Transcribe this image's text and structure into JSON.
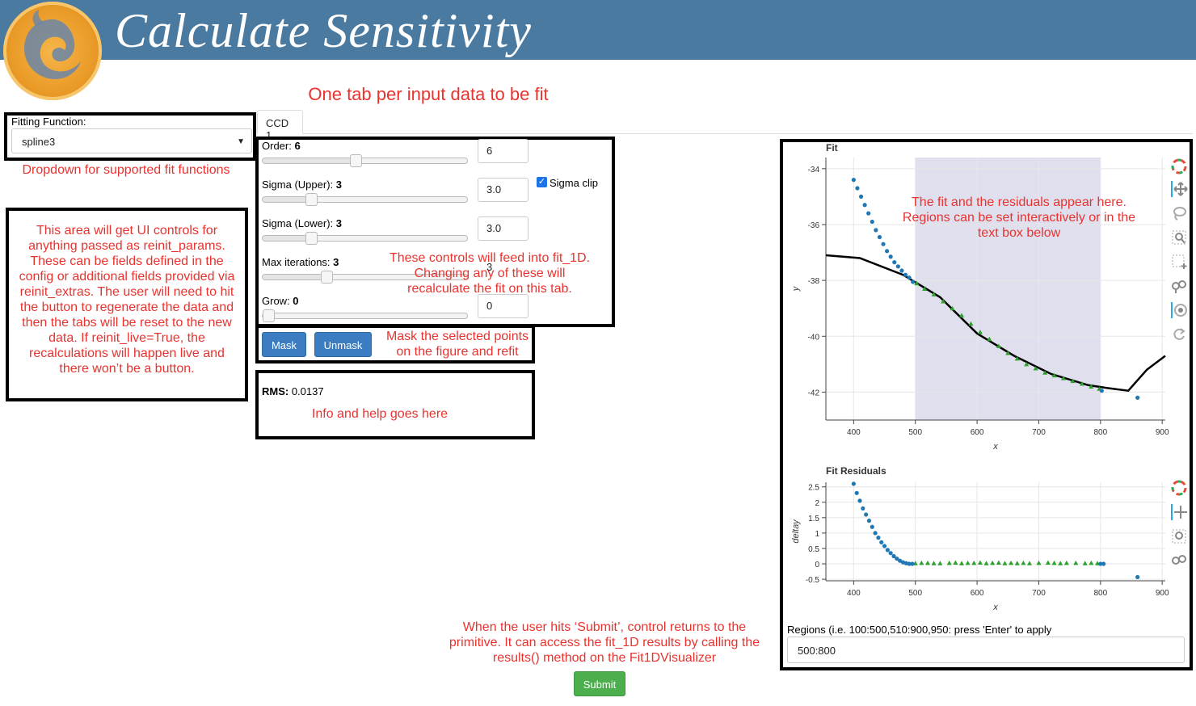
{
  "header": {
    "title": "Calculate Sensitivity"
  },
  "annotations": {
    "tab_note": "One tab per input data to be fit",
    "dropdown_note": "Dropdown for supported fit functions",
    "reinit_note": "This area will get UI controls for anything passed as reinit_params. These can be fields defined in the config or additional fields provided via reinit_extras.  The user will need to hit the button to regenerate the data and then the tabs will be reset to the new data.  If reinit_live=True, the recalculations will happen live and there won’t be a button.",
    "controls_note": "These controls will feed into fit_1D.  Changing any of these will recalculate the fit on this tab.",
    "mask_note": "Mask the selected points on the figure and refit",
    "info_note": "Info and help goes here",
    "plot_note": "The fit and the residuals appear here. Regions can be set interactively or in the text box below",
    "submit_note": "When the user hits ‘Submit’, control returns to the primitive.  It can access the fit_1D results by calling the results() method on the Fit1DVisualizer"
  },
  "fitting": {
    "label": "Fitting Function:",
    "value": "spline3"
  },
  "tab": {
    "label": "CCD 1"
  },
  "controls": {
    "order": {
      "label": "Order: ",
      "value": "6",
      "input": "6",
      "frac": 0.45
    },
    "sigma_upper": {
      "label": "Sigma (Upper): ",
      "value": "3",
      "input": "3.0",
      "frac": 0.22
    },
    "sigma_lower": {
      "label": "Sigma (Lower): ",
      "value": "3",
      "input": "3.0",
      "frac": 0.22
    },
    "max_iter": {
      "label": "Max iterations: ",
      "value": "3",
      "input": "3",
      "frac": 0.3
    },
    "grow": {
      "label": "Grow: ",
      "value": "0",
      "input": "0",
      "frac": 0.0
    },
    "sigma_clip": {
      "label": "Sigma clip",
      "checked": true
    }
  },
  "buttons": {
    "mask": "Mask",
    "unmask": "Unmask",
    "submit": "Submit"
  },
  "rms": {
    "label": "RMS:",
    "value": " 0.0137"
  },
  "regions": {
    "label": "Regions (i.e. 100:500,510:900,950: press 'Enter' to apply",
    "value": "500:800"
  },
  "chart_data": [
    {
      "type": "scatter",
      "title": "Fit",
      "xlabel": "x",
      "ylabel": "y",
      "xlim": [
        355,
        905
      ],
      "ylim": [
        -43.0,
        -33.6
      ],
      "xticks": [
        400,
        500,
        600,
        700,
        800,
        900
      ],
      "yticks": [
        -34,
        -36,
        -38,
        -40,
        -42
      ],
      "region": [
        500,
        800
      ],
      "masked_points": [
        [
          400,
          -34.4
        ],
        [
          406,
          -34.7
        ],
        [
          412,
          -35.0
        ],
        [
          418,
          -35.3
        ],
        [
          424,
          -35.6
        ],
        [
          430,
          -35.9
        ],
        [
          436,
          -36.2
        ],
        [
          442,
          -36.45
        ],
        [
          448,
          -36.7
        ],
        [
          454,
          -36.95
        ],
        [
          460,
          -37.15
        ],
        [
          466,
          -37.35
        ],
        [
          472,
          -37.5
        ],
        [
          478,
          -37.65
        ],
        [
          484,
          -37.8
        ],
        [
          490,
          -37.9
        ],
        [
          496,
          -38.05
        ],
        [
          802,
          -41.95
        ],
        [
          860,
          -42.2
        ]
      ],
      "fitted_points": [
        [
          502,
          -38.1
        ],
        [
          515,
          -38.3
        ],
        [
          530,
          -38.5
        ],
        [
          545,
          -38.75
        ],
        [
          560,
          -39.0
        ],
        [
          575,
          -39.25
        ],
        [
          590,
          -39.55
        ],
        [
          605,
          -39.85
        ],
        [
          620,
          -40.1
        ],
        [
          635,
          -40.35
        ],
        [
          650,
          -40.6
        ],
        [
          665,
          -40.8
        ],
        [
          680,
          -41.0
        ],
        [
          695,
          -41.15
        ],
        [
          710,
          -41.3
        ],
        [
          725,
          -41.4
        ],
        [
          740,
          -41.5
        ],
        [
          755,
          -41.6
        ],
        [
          770,
          -41.7
        ],
        [
          785,
          -41.8
        ],
        [
          798,
          -41.88
        ]
      ],
      "fit_line": [
        [
          355,
          -37.1
        ],
        [
          410,
          -37.2
        ],
        [
          480,
          -37.8
        ],
        [
          540,
          -38.6
        ],
        [
          600,
          -39.9
        ],
        [
          660,
          -40.7
        ],
        [
          720,
          -41.35
        ],
        [
          780,
          -41.75
        ],
        [
          810,
          -41.85
        ],
        [
          845,
          -41.95
        ],
        [
          875,
          -41.2
        ],
        [
          905,
          -40.7
        ]
      ]
    },
    {
      "type": "scatter",
      "title": "Fit Residuals",
      "xlabel": "x",
      "ylabel": "deltay",
      "xlim": [
        355,
        905
      ],
      "ylim": [
        -0.55,
        2.65
      ],
      "xticks": [
        400,
        500,
        600,
        700,
        800,
        900
      ],
      "yticks": [
        2.5,
        2,
        1.5,
        1,
        0.5,
        0,
        -0.5
      ],
      "ytick_labels": [
        "2.5",
        "2",
        "1.5",
        "1",
        "0.5",
        "0",
        "-0.5"
      ],
      "masked_points": [
        [
          400,
          2.6
        ],
        [
          405,
          2.3
        ],
        [
          410,
          2.05
        ],
        [
          415,
          1.8
        ],
        [
          420,
          1.6
        ],
        [
          425,
          1.4
        ],
        [
          430,
          1.2
        ],
        [
          435,
          1.0
        ],
        [
          440,
          0.85
        ],
        [
          445,
          0.7
        ],
        [
          450,
          0.58
        ],
        [
          455,
          0.45
        ],
        [
          460,
          0.35
        ],
        [
          465,
          0.25
        ],
        [
          470,
          0.17
        ],
        [
          475,
          0.1
        ],
        [
          480,
          0.05
        ],
        [
          485,
          0.02
        ],
        [
          490,
          0.0
        ],
        [
          495,
          0.0
        ],
        [
          800,
          0.0
        ],
        [
          805,
          0.0
        ],
        [
          860,
          -0.43
        ]
      ],
      "fitted_points": [
        [
          500,
          0.02
        ],
        [
          510,
          0.03
        ],
        [
          520,
          0.03
        ],
        [
          530,
          0.02
        ],
        [
          540,
          0.02
        ],
        [
          555,
          0.03
        ],
        [
          565,
          0.04
        ],
        [
          575,
          0.02
        ],
        [
          585,
          0.03
        ],
        [
          595,
          0.03
        ],
        [
          605,
          0.04
        ],
        [
          615,
          0.02
        ],
        [
          625,
          0.03
        ],
        [
          635,
          0.04
        ],
        [
          645,
          0.02
        ],
        [
          655,
          0.03
        ],
        [
          665,
          0.02
        ],
        [
          675,
          0.03
        ],
        [
          685,
          0.02
        ],
        [
          700,
          0.03
        ],
        [
          715,
          0.04
        ],
        [
          725,
          0.03
        ],
        [
          735,
          0.02
        ],
        [
          745,
          0.03
        ],
        [
          760,
          0.03
        ],
        [
          775,
          0.02
        ],
        [
          785,
          0.03
        ],
        [
          795,
          0.02
        ]
      ]
    }
  ]
}
